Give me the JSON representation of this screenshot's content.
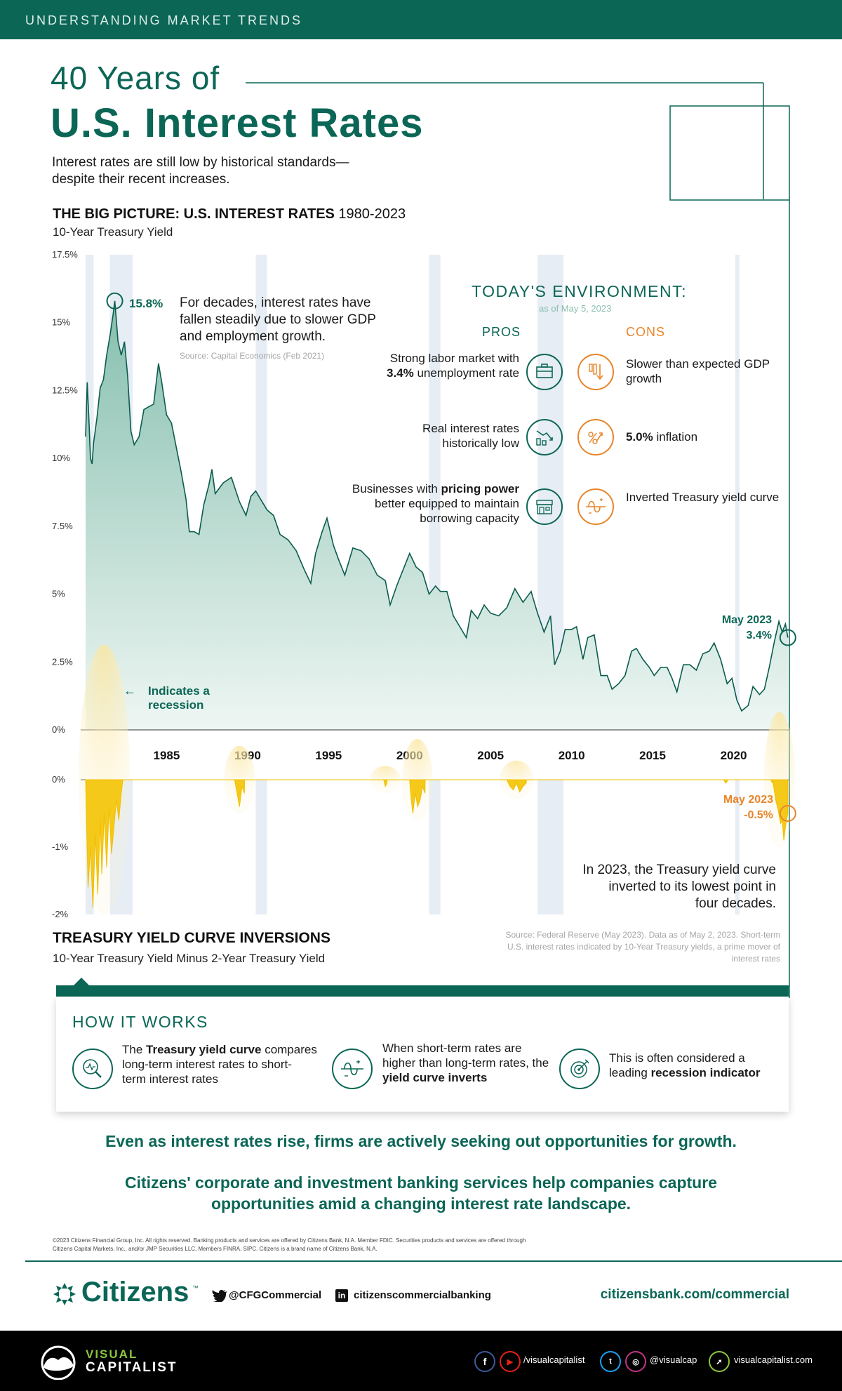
{
  "header": {
    "kicker": "UNDERSTANDING MARKET TRENDS"
  },
  "title": {
    "line1": "40 Years of",
    "line2": "U.S. Interest Rates"
  },
  "subtitle": "Interest rates are still low by historical standards—despite their recent increases.",
  "big_picture": {
    "title_bold": "THE BIG PICTURE: U.S. INTEREST RATES",
    "title_years": " 1980-2023",
    "subtitle": "10-Year Treasury Yield",
    "y_ticks": [
      "17.5%",
      "15%",
      "12.5%",
      "10%",
      "7.5%",
      "5%",
      "2.5%",
      "0%"
    ],
    "x_ticks": [
      "1985",
      "1990",
      "1995",
      "2000",
      "2005",
      "2010",
      "2015",
      "2020"
    ],
    "peak_label": "15.8%",
    "callout": "For decades, interest rates have fallen steadily due to slower GDP and employment growth.",
    "callout_source": "Source: Capital Economics (Feb 2021)",
    "recession_note": "Indicates a recession",
    "recession_arrow": "←",
    "end_label_month": "May 2023",
    "end_label_value": "3.4%"
  },
  "today": {
    "title": "TODAY'S ENVIRONMENT:",
    "as_of": "as of May 5, 2023",
    "pros_header": "PROS",
    "cons_header": "CONS",
    "pros": [
      {
        "pre": "Strong labor market with ",
        "bold": "3.4%",
        "post": " unemployment rate",
        "icon": "briefcase-icon"
      },
      {
        "pre": "Real interest rates historically low",
        "bold": "",
        "post": "",
        "icon": "declining-chart-icon"
      },
      {
        "pre": "Businesses with ",
        "bold": "pricing power",
        "post": " better equipped to maintain borrowing capacity",
        "icon": "storefront-icon"
      }
    ],
    "cons": [
      {
        "pre": "Slower than expected GDP growth",
        "bold": "",
        "post": "",
        "icon": "falling-bars-icon"
      },
      {
        "pre": "",
        "bold": "5.0%",
        "post": " inflation",
        "icon": "percent-arrow-icon"
      },
      {
        "pre": "Inverted Treasury yield curve",
        "bold": "",
        "post": "",
        "icon": "inverted-curve-icon"
      }
    ]
  },
  "inversions": {
    "y_ticks": [
      "0%",
      "-1%",
      "-2%"
    ],
    "end_label_month": "May 2023",
    "end_label_value": "-0.5%",
    "note": "In 2023, the Treasury yield curve inverted to its lowest point in four decades.",
    "title": "TREASURY YIELD CURVE INVERSIONS",
    "subtitle": "10-Year Treasury Yield Minus 2-Year Treasury Yield",
    "source": "Source: Federal Reserve (May 2023). Data as of May 2, 2023. Short-term U.S. interest rates indicated by 10-Year Treasury yields, a prime mover of interest rates"
  },
  "how_it_works": {
    "title": "HOW IT WORKS",
    "items": [
      {
        "pre": "The ",
        "bold": "Treasury yield curve",
        "post": " compares long-term interest rates to short- term interest rates",
        "icon": "magnifier-chart-icon"
      },
      {
        "pre": "When short-term rates are higher than long-term rates, the ",
        "bold": "yield curve inverts",
        "post": "",
        "icon": "inverted-curve-icon"
      },
      {
        "pre": "This is often considered a leading ",
        "bold": "recession indicator",
        "post": "",
        "icon": "target-icon"
      }
    ]
  },
  "message": {
    "line1": "Even as interest rates rise, firms are actively seeking out opportunities for growth.",
    "line2": "Citizens' corporate and investment banking services help companies capture opportunities amid a changing interest rate landscape."
  },
  "legal": "©2023 Citizens Financial Group, Inc. All rights reserved. Banking products and services are offered by Citizens Bank, N.A. Member FDIC. Securities products and services are offered through Citizens Capital Markets, Inc., and/or JMP Securities LLC, Members FINRA, SIPC. Citizens is a brand name of Citizens Bank, N.A.",
  "footer": {
    "brand": "Citizens",
    "tm": "™",
    "twitter": "@CFGCommercial",
    "linkedin": "citizenscommercialbanking",
    "url": "citizensbank.com/commercial"
  },
  "vc_footer": {
    "brand_top": "VISUAL",
    "brand_bottom": "CAPITALIST",
    "handle1": "/visualcapitalist",
    "handle2": "@visualcap",
    "site": "visualcapitalist.com"
  },
  "colors": {
    "brand_green": "#0b6656",
    "area_fill": "#9fcbbd",
    "inversion_yellow": "#f5c91a",
    "orange": "#e8852a",
    "recession_band": "#e6edf4"
  },
  "chart_data": [
    {
      "type": "area",
      "title": "THE BIG PICTURE: U.S. INTEREST RATES 1980-2023",
      "subtitle": "10-Year Treasury Yield",
      "ylim": [
        0,
        17.5
      ],
      "xlim": [
        1980.0,
        2023.4
      ],
      "recessions": [
        [
          1980.0,
          1980.5
        ],
        [
          1981.5,
          1982.9
        ],
        [
          1990.5,
          1991.2
        ],
        [
          2001.2,
          2001.9
        ],
        [
          2007.9,
          2009.5
        ],
        [
          2020.1,
          2020.3
        ]
      ],
      "series": [
        {
          "x": [
            1980.0,
            1980.1,
            1980.2,
            1980.3,
            1980.4,
            1980.5,
            1980.7,
            1980.9,
            1981.1,
            1981.3,
            1981.5,
            1981.7,
            1981.8,
            1982.0,
            1982.2,
            1982.4,
            1982.6,
            1982.8,
            1983.0,
            1983.3,
            1983.6,
            1983.9,
            1984.2,
            1984.5,
            1984.7,
            1985.0,
            1985.3,
            1985.6,
            1985.9,
            1986.2,
            1986.4,
            1986.7,
            1987.0,
            1987.3,
            1987.6,
            1987.8,
            1988.0,
            1988.5,
            1989.0,
            1989.5,
            1989.9,
            1990.2,
            1990.5,
            1990.8,
            1991.2,
            1991.6,
            1992.0,
            1992.5,
            1993.0,
            1993.5,
            1993.9,
            1994.2,
            1994.6,
            1994.9,
            1995.3,
            1995.6,
            1996.0,
            1996.5,
            1997.0,
            1997.5,
            1998.0,
            1998.5,
            1998.8,
            1999.2,
            1999.6,
            2000.0,
            2000.4,
            2000.8,
            2001.2,
            2001.6,
            2001.9,
            2002.3,
            2002.7,
            2003.0,
            2003.5,
            2003.8,
            2004.2,
            2004.6,
            2005.0,
            2005.5,
            2006.0,
            2006.5,
            2007.0,
            2007.5,
            2007.9,
            2008.3,
            2008.7,
            2008.95,
            2009.3,
            2009.6,
            2010.0,
            2010.3,
            2010.7,
            2011.0,
            2011.4,
            2011.8,
            2012.2,
            2012.5,
            2012.9,
            2013.3,
            2013.7,
            2014.0,
            2014.4,
            2014.8,
            2015.1,
            2015.5,
            2015.9,
            2016.2,
            2016.5,
            2016.9,
            2017.3,
            2017.7,
            2018.1,
            2018.5,
            2018.8,
            2019.2,
            2019.6,
            2019.9,
            2020.2,
            2020.5,
            2020.9,
            2021.2,
            2021.6,
            2021.9,
            2022.2,
            2022.5,
            2022.8,
            2023.0,
            2023.2,
            2023.35
          ],
          "y": [
            10.8,
            12.8,
            11.5,
            10.0,
            9.8,
            10.6,
            11.5,
            12.6,
            12.9,
            13.8,
            14.5,
            15.3,
            15.8,
            14.3,
            13.8,
            14.3,
            13.0,
            11.0,
            10.5,
            10.8,
            11.8,
            11.9,
            12.0,
            13.5,
            12.8,
            11.6,
            11.3,
            10.4,
            9.5,
            8.5,
            7.3,
            7.3,
            7.2,
            8.3,
            9.0,
            9.6,
            8.7,
            9.1,
            9.3,
            8.4,
            7.9,
            8.6,
            8.8,
            8.5,
            8.1,
            7.9,
            7.2,
            7.0,
            6.6,
            5.9,
            5.4,
            6.5,
            7.3,
            7.8,
            6.8,
            6.3,
            5.7,
            6.7,
            6.6,
            6.3,
            5.7,
            5.5,
            4.6,
            5.3,
            5.9,
            6.5,
            6.0,
            5.8,
            5.0,
            5.3,
            5.1,
            5.1,
            4.2,
            3.9,
            3.4,
            4.4,
            4.1,
            4.6,
            4.3,
            4.2,
            4.5,
            5.2,
            4.7,
            5.1,
            4.3,
            3.6,
            4.2,
            2.4,
            2.9,
            3.7,
            3.7,
            3.8,
            2.6,
            3.4,
            3.5,
            2.0,
            2.0,
            1.5,
            1.7,
            2.0,
            2.9,
            3.0,
            2.6,
            2.3,
            2.0,
            2.3,
            2.3,
            1.9,
            1.4,
            2.4,
            2.4,
            2.2,
            2.8,
            2.9,
            3.2,
            2.6,
            1.7,
            1.9,
            1.1,
            0.7,
            0.9,
            1.6,
            1.3,
            1.5,
            2.3,
            3.2,
            4.0,
            3.6,
            3.9,
            3.4
          ]
        }
      ],
      "annotations": [
        "15.8%",
        "May 2023 3.4%"
      ]
    },
    {
      "type": "area",
      "title": "TREASURY YIELD CURVE INVERSIONS",
      "subtitle": "10-Year Treasury Yield Minus 2-Year Treasury Yield",
      "ylim": [
        -2,
        0
      ],
      "xlim": [
        1980.0,
        2023.4
      ],
      "series": [
        {
          "x": [
            1980.0,
            1980.15,
            1980.3,
            1980.45,
            1980.6,
            1980.75,
            1980.9,
            1981.0,
            1981.15,
            1981.3,
            1981.45,
            1981.6,
            1981.75,
            1981.9,
            1982.05,
            1982.2,
            1982.3,
            1982.31,
            1989.2,
            1989.35,
            1989.5,
            1989.65,
            1989.8,
            1989.81,
            1998.4,
            1998.5,
            1998.6,
            1998.61,
            2000.0,
            2000.1,
            2000.2,
            2000.35,
            2000.5,
            2000.65,
            2000.8,
            2000.95,
            2000.96,
            2006.0,
            2006.2,
            2006.4,
            2006.6,
            2006.8,
            2007.0,
            2007.2,
            2007.21,
            2019.4,
            2019.5,
            2019.6,
            2019.61,
            2022.3,
            2022.4,
            2022.41,
            2022.6,
            2022.75,
            2022.9,
            2023.0,
            2023.1,
            2023.2,
            2023.35
          ],
          "y": [
            0,
            -1.6,
            -1.0,
            -1.9,
            -0.8,
            -1.7,
            -0.6,
            -1.4,
            -0.5,
            -1.3,
            -0.4,
            -1.1,
            -0.7,
            -0.3,
            -0.6,
            -0.2,
            0,
            0,
            0,
            -0.2,
            -0.4,
            -0.1,
            -0.2,
            0,
            0,
            -0.1,
            -0.05,
            0,
            0,
            -0.3,
            -0.5,
            -0.2,
            -0.4,
            -0.3,
            -0.1,
            -0.2,
            0,
            0,
            -0.1,
            -0.15,
            -0.05,
            -0.18,
            -0.1,
            -0.05,
            0,
            0,
            -0.05,
            -0.03,
            0,
            0,
            -0.05,
            0,
            -0.3,
            -0.45,
            -0.65,
            -0.6,
            -0.9,
            -0.7,
            -0.5
          ]
        }
      ],
      "annotations": [
        "May 2023 -0.5%"
      ]
    }
  ]
}
